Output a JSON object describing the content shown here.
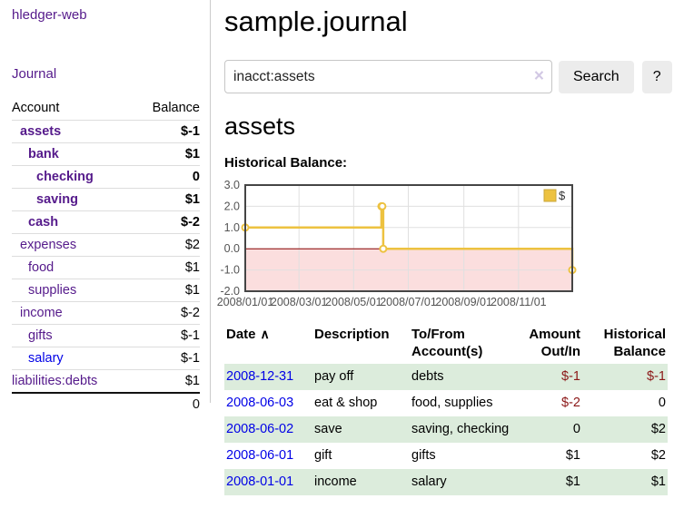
{
  "app": {
    "brand": "hledger-web"
  },
  "sidebar": {
    "nav_journal": "Journal",
    "accounts": {
      "col_account": "Account",
      "col_balance": "Balance",
      "rows": [
        {
          "name": "assets",
          "balance": "$-1",
          "depth": 1,
          "bold": true,
          "neg": "strong"
        },
        {
          "name": "bank",
          "balance": "$1",
          "depth": 2,
          "bold": true,
          "neg": "none"
        },
        {
          "name": "checking",
          "balance": "0",
          "depth": 3,
          "bold": true,
          "neg": "none"
        },
        {
          "name": "saving",
          "balance": "$1",
          "depth": 3,
          "bold": true,
          "neg": "none"
        },
        {
          "name": "cash",
          "balance": "$-2",
          "depth": 2,
          "bold": true,
          "neg": "strong"
        },
        {
          "name": "expenses",
          "balance": "$2",
          "depth": 1,
          "bold": false,
          "neg": "none"
        },
        {
          "name": "food",
          "balance": "$1",
          "depth": 2,
          "bold": false,
          "neg": "none"
        },
        {
          "name": "supplies",
          "balance": "$1",
          "depth": 2,
          "bold": false,
          "neg": "none"
        },
        {
          "name": "income",
          "balance": "$-2",
          "depth": 1,
          "bold": false,
          "neg": "faded"
        },
        {
          "name": "gifts",
          "balance": "$-1",
          "depth": 2,
          "bold": false,
          "neg": "faded"
        },
        {
          "name": "salary",
          "balance": "$-1",
          "depth": 2,
          "bold": false,
          "neg": "faded",
          "unvisited": true
        },
        {
          "name": "liabilities:debts",
          "balance": "$1",
          "depth": 0,
          "bold": false,
          "neg": "none"
        }
      ],
      "total": "0"
    }
  },
  "header": {
    "title": "sample.journal"
  },
  "search": {
    "value": "inacct:assets",
    "clear_icon": "×",
    "search_button": "Search",
    "help_button": "?"
  },
  "account_view": {
    "heading": "assets",
    "chart_title": "Historical Balance:"
  },
  "chart_data": {
    "type": "line",
    "title": "Historical Balance",
    "series": [
      {
        "name": "$",
        "color": "#edc240",
        "step": true,
        "points": [
          [
            "2008-01-01",
            1
          ],
          [
            "2008-06-01",
            2
          ],
          [
            "2008-06-02",
            2
          ],
          [
            "2008-06-03",
            0
          ],
          [
            "2008-12-31",
            -1
          ]
        ]
      }
    ],
    "xlim": [
      "2008-01-01",
      "2008-12-31"
    ],
    "ylim": [
      -2,
      3
    ],
    "y_ticks": [
      "3.0",
      "2.0",
      "1.0",
      "0.0",
      "-1.0",
      "-2.0"
    ],
    "x_ticks": [
      {
        "label": "2008/01/01",
        "date": "2008-01-01"
      },
      {
        "label": "2008/03/01",
        "date": "2008-03-01"
      },
      {
        "label": "2008/05/01",
        "date": "2008-05-01"
      },
      {
        "label": "2008/07/01",
        "date": "2008-07-01"
      },
      {
        "label": "2008/09/01",
        "date": "2008-09-01"
      },
      {
        "label": "2008/11/01",
        "date": "2008-11-01"
      }
    ],
    "legend": {
      "label": "$",
      "position": "top-right",
      "swatch_color": "#edc240"
    },
    "grid": true,
    "colors": {
      "grid": "#e0e0e0",
      "border": "#454545",
      "zero_line": "#8b0000",
      "negative_region": "#fbdede",
      "axis_text": "#545454",
      "marker_fill": "#ffffff"
    }
  },
  "transactions": {
    "sort_icon": "∧",
    "headers": {
      "date": "Date",
      "description": "Description",
      "accounts": "To/From Account(s)",
      "amount": "Amount Out/In",
      "balance": "Historical Balance"
    },
    "rows": [
      {
        "date": "2008-12-31",
        "description": "pay off",
        "accounts": "debts",
        "amount": "$-1",
        "balance": "$-1",
        "amount_neg": true,
        "balance_neg": true
      },
      {
        "date": "2008-06-03",
        "description": "eat & shop",
        "accounts": "food, supplies",
        "amount": "$-2",
        "balance": "0",
        "amount_neg": true,
        "balance_neg": false
      },
      {
        "date": "2008-06-02",
        "description": "save",
        "accounts": "saving, checking",
        "amount": "0",
        "balance": "$2",
        "amount_neg": false,
        "balance_neg": false
      },
      {
        "date": "2008-06-01",
        "description": "gift",
        "accounts": "gifts",
        "amount": "$1",
        "balance": "$2",
        "amount_neg": false,
        "balance_neg": false
      },
      {
        "date": "2008-01-01",
        "description": "income",
        "accounts": "salary",
        "amount": "$1",
        "balance": "$1",
        "amount_neg": false,
        "balance_neg": false
      }
    ]
  }
}
